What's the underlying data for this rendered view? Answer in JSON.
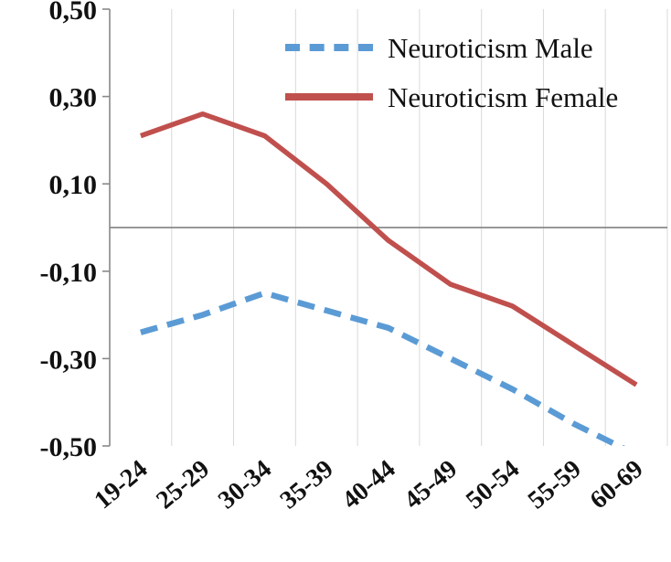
{
  "chart_data": {
    "type": "line",
    "title": "",
    "xlabel": "",
    "ylabel": "",
    "categories": [
      "19-24",
      "25-29",
      "30-34",
      "35-39",
      "40-44",
      "45-49",
      "50-54",
      "55-59",
      "60-69"
    ],
    "series": [
      {
        "name": "Neuroticism Male",
        "style": "dashed",
        "color": "#5b9bd5",
        "values": [
          -0.24,
          -0.2,
          -0.15,
          -0.19,
          -0.23,
          -0.3,
          -0.37,
          -0.45,
          -0.52
        ]
      },
      {
        "name": "Neuroticism Female",
        "style": "solid",
        "color": "#c0504d",
        "values": [
          0.21,
          0.26,
          0.21,
          0.1,
          -0.03,
          -0.13,
          -0.18,
          -0.27,
          -0.36
        ]
      }
    ],
    "ylim": [
      -0.5,
      0.5
    ],
    "yticks": [
      {
        "value": 0.5,
        "label": "0,50"
      },
      {
        "value": 0.3,
        "label": "0,30"
      },
      {
        "value": 0.1,
        "label": "0,10"
      },
      {
        "value": -0.1,
        "label": "-0,10"
      },
      {
        "value": -0.3,
        "label": "-0,30"
      },
      {
        "value": -0.5,
        "label": "-0,50"
      }
    ],
    "grid": "vertical-only",
    "legend_position": "top-center-inside",
    "axis_color": "#898989",
    "grid_color": "#d9d9d9",
    "text_color": "#111111"
  }
}
